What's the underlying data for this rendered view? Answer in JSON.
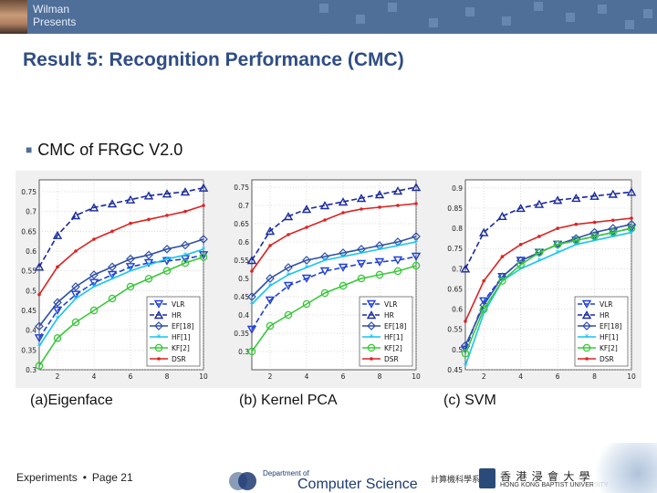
{
  "header": {
    "presenter_line1": "Wilman",
    "presenter_line2": "Presents"
  },
  "slide": {
    "title": "Result 5: Recognition Performance (CMC)",
    "bullet": "CMC of FRGC V2.0"
  },
  "legend_labels": [
    "VLR",
    "HR",
    "EF[18]",
    "HF[1]",
    "KF[2]",
    "DSR"
  ],
  "colors": {
    "VLR": "#1e40d8",
    "HR": "#1a2aa0",
    "EF[18]": "#2f4fa8",
    "HF[1]": "#14c4f0",
    "KF[2]": "#38c838",
    "DSR": "#dd2222"
  },
  "chart_data": [
    {
      "type": "line",
      "caption": "(a)Eigenface",
      "x": [
        1,
        2,
        3,
        4,
        5,
        6,
        7,
        8,
        9,
        10
      ],
      "ylim": [
        0.3,
        0.78
      ],
      "yticks": [
        "0.3",
        "0.35",
        "0.4",
        "0.45",
        "0.5",
        "0.55",
        "0.6",
        "0.65",
        "0.7",
        "0.75"
      ],
      "xticks": [
        "2",
        "4",
        "6",
        "8",
        "10"
      ],
      "series": [
        {
          "name": "VLR",
          "values": [
            0.38,
            0.45,
            0.49,
            0.52,
            0.54,
            0.56,
            0.57,
            0.575,
            0.58,
            0.59
          ]
        },
        {
          "name": "HR",
          "values": [
            0.56,
            0.64,
            0.69,
            0.71,
            0.72,
            0.73,
            0.74,
            0.745,
            0.75,
            0.76
          ]
        },
        {
          "name": "EF[18]",
          "values": [
            0.41,
            0.47,
            0.51,
            0.54,
            0.56,
            0.58,
            0.59,
            0.605,
            0.615,
            0.63
          ]
        },
        {
          "name": "HF[1]",
          "values": [
            0.36,
            0.43,
            0.48,
            0.51,
            0.53,
            0.55,
            0.565,
            0.58,
            0.59,
            0.605
          ]
        },
        {
          "name": "KF[2]",
          "values": [
            0.31,
            0.38,
            0.42,
            0.45,
            0.48,
            0.51,
            0.53,
            0.55,
            0.57,
            0.585
          ]
        },
        {
          "name": "DSR",
          "values": [
            0.49,
            0.56,
            0.6,
            0.63,
            0.65,
            0.67,
            0.68,
            0.69,
            0.7,
            0.715
          ]
        }
      ]
    },
    {
      "type": "line",
      "caption": "(b) Kernel PCA",
      "x": [
        1,
        2,
        3,
        4,
        5,
        6,
        7,
        8,
        9,
        10
      ],
      "ylim": [
        0.25,
        0.77
      ],
      "yticks": [
        "0.3",
        "0.35",
        "0.4",
        "0.45",
        "0.5",
        "0.55",
        "0.6",
        "0.65",
        "0.7",
        "0.75"
      ],
      "xticks": [
        "2",
        "4",
        "6",
        "8",
        "10"
      ],
      "series": [
        {
          "name": "VLR",
          "values": [
            0.36,
            0.44,
            0.48,
            0.5,
            0.52,
            0.53,
            0.54,
            0.545,
            0.55,
            0.56
          ]
        },
        {
          "name": "HR",
          "values": [
            0.55,
            0.63,
            0.67,
            0.69,
            0.7,
            0.71,
            0.72,
            0.73,
            0.74,
            0.75
          ]
        },
        {
          "name": "EF[18]",
          "values": [
            0.45,
            0.5,
            0.53,
            0.55,
            0.56,
            0.57,
            0.58,
            0.59,
            0.6,
            0.615
          ]
        },
        {
          "name": "HF[1]",
          "values": [
            0.43,
            0.48,
            0.51,
            0.53,
            0.55,
            0.56,
            0.57,
            0.58,
            0.59,
            0.6
          ]
        },
        {
          "name": "KF[2]",
          "values": [
            0.3,
            0.37,
            0.4,
            0.43,
            0.46,
            0.48,
            0.5,
            0.51,
            0.52,
            0.535
          ]
        },
        {
          "name": "DSR",
          "values": [
            0.52,
            0.59,
            0.62,
            0.64,
            0.66,
            0.68,
            0.69,
            0.695,
            0.7,
            0.705
          ]
        }
      ]
    },
    {
      "type": "line",
      "caption": "(c)  SVM",
      "x": [
        1,
        2,
        3,
        4,
        5,
        6,
        7,
        8,
        9,
        10
      ],
      "ylim": [
        0.45,
        0.92
      ],
      "yticks": [
        "0.45",
        "0.5",
        "0.55",
        "0.6",
        "0.65",
        "0.7",
        "0.75",
        "0.8",
        "0.85",
        "0.9"
      ],
      "xticks": [
        "2",
        "4",
        "6",
        "8",
        "10"
      ],
      "series": [
        {
          "name": "VLR",
          "values": [
            0.5,
            0.62,
            0.68,
            0.72,
            0.74,
            0.76,
            0.77,
            0.78,
            0.79,
            0.8
          ]
        },
        {
          "name": "HR",
          "values": [
            0.7,
            0.79,
            0.83,
            0.85,
            0.86,
            0.87,
            0.875,
            0.88,
            0.885,
            0.89
          ]
        },
        {
          "name": "EF[18]",
          "values": [
            0.51,
            0.61,
            0.68,
            0.72,
            0.74,
            0.76,
            0.775,
            0.79,
            0.8,
            0.81
          ]
        },
        {
          "name": "HF[1]",
          "values": [
            0.46,
            0.59,
            0.67,
            0.7,
            0.72,
            0.74,
            0.76,
            0.77,
            0.78,
            0.79
          ]
        },
        {
          "name": "KF[2]",
          "values": [
            0.49,
            0.6,
            0.67,
            0.71,
            0.74,
            0.76,
            0.77,
            0.78,
            0.79,
            0.8
          ]
        },
        {
          "name": "DSR",
          "values": [
            0.57,
            0.67,
            0.73,
            0.76,
            0.78,
            0.8,
            0.81,
            0.815,
            0.82,
            0.825
          ]
        }
      ]
    }
  ],
  "footer": {
    "section": "Experiments",
    "bullet": "•",
    "page": "Page 21",
    "dept_line": "Department of",
    "dept_name": "Computer Science",
    "dept_cn": "計算機科學系",
    "univ_cn": "香 港 浸 會 大 學",
    "univ_en": "HONG KONG BAPTIST UNIVERSITY"
  }
}
